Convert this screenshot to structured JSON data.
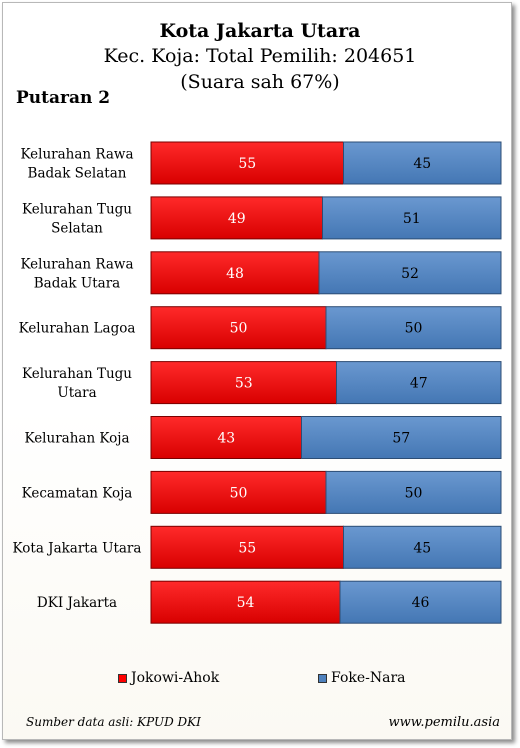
{
  "header": {
    "title": "Kota Jakarta Utara",
    "subtitle": "Kec. Koja: Total Pemilih: 204651",
    "subtitle2": "(Suara sah 67%)",
    "round": "Putaran 2"
  },
  "chart_data": {
    "type": "bar",
    "orientation": "horizontal",
    "stacked": true,
    "categories": [
      "Kelurahan Rawa Badak Selatan",
      "Kelurahan Tugu Selatan",
      "Kelurahan Rawa Badak Utara",
      "Kelurahan Lagoa",
      "Kelurahan Tugu Utara",
      "Kelurahan Koja",
      "Kecamatan Koja",
      "Kota Jakarta Utara",
      "DKI Jakarta"
    ],
    "category_lines": [
      [
        "Kelurahan Rawa",
        "Badak Selatan"
      ],
      [
        "Kelurahan Tugu",
        "Selatan"
      ],
      [
        "Kelurahan Rawa",
        "Badak Utara"
      ],
      [
        "Kelurahan Lagoa"
      ],
      [
        "Kelurahan Tugu",
        "Utara"
      ],
      [
        "Kelurahan Koja"
      ],
      [
        "Kecamatan Koja"
      ],
      [
        "Kota Jakarta Utara"
      ],
      [
        "DKI Jakarta"
      ]
    ],
    "series": [
      {
        "name": "Jokowi-Ahok",
        "color": "#ff0000",
        "values": [
          55,
          49,
          48,
          50,
          53,
          43,
          50,
          55,
          54
        ]
      },
      {
        "name": "Foke-Nara",
        "color": "#4f81bd",
        "values": [
          45,
          51,
          52,
          50,
          47,
          57,
          50,
          45,
          46
        ]
      }
    ],
    "xlim": [
      0,
      100
    ],
    "legend_position": "bottom",
    "grid": false
  },
  "footer": {
    "source": "Sumber data asli: KPUD DKI",
    "site": "www.pemilu.asia"
  }
}
